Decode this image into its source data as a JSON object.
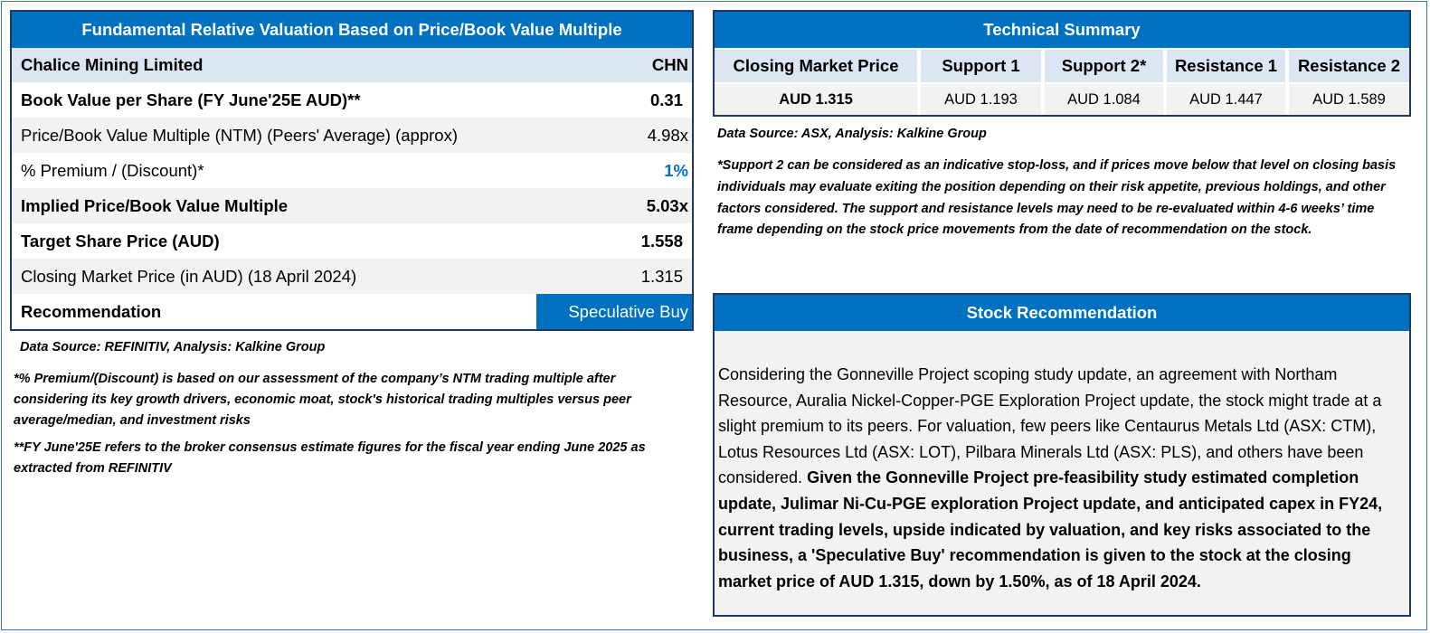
{
  "valuation": {
    "title": "Fundamental Relative Valuation Based on Price/Book Value Multiple",
    "company": {
      "name": "Chalice Mining Limited",
      "ticker": "CHN"
    },
    "rows": [
      {
        "label": "Book Value per Share (FY June'25E AUD)**",
        "value": "0.31"
      },
      {
        "label": "Price/Book Value Multiple (NTM)  (Peers' Average) (approx)",
        "value": "4.98x"
      },
      {
        "label": "% Premium / (Discount)*",
        "value": "1%"
      },
      {
        "label": "Implied Price/Book Value Multiple",
        "value": "5.03x"
      },
      {
        "label": "Target Share Price (AUD)",
        "value": "1.558"
      },
      {
        "label": "Closing Market Price (in AUD) (18 April 2024)",
        "value": "1.315"
      }
    ],
    "recommendation": {
      "label": "Recommendation",
      "value": "Speculative Buy"
    },
    "source": "Data Source: REFINITIV, Analysis: Kalkine Group",
    "note1": "*% Premium/(Discount) is based on our assessment of the company’s NTM trading multiple after considering its key growth drivers, economic moat, stock's historical trading multiples versus peer average/median, and investment risks",
    "note2": " **FY June'25E refers to the broker consensus estimate figures for the fiscal year ending June 2025 as extracted from REFINITIV"
  },
  "technical": {
    "title": "Technical Summary",
    "columns": [
      {
        "header": "Closing Market Price",
        "value": "AUD 1.315"
      },
      {
        "header": "Support 1",
        "value": "AUD 1.193"
      },
      {
        "header": "Support 2*",
        "value": "AUD 1.084"
      },
      {
        "header": "Resistance 1",
        "value": "AUD 1.447"
      },
      {
        "header": "Resistance 2",
        "value": "AUD 1.589"
      }
    ],
    "source": "Data Source: ASX, Analysis: Kalkine Group",
    "note": "*Support 2 can be considered as an indicative stop-loss, and if prices move below that level on closing basis individuals may evaluate exiting the position depending on their risk appetite, previous holdings, and other factors considered. The support and resistance levels may need to be re-evaluated within 4-6 weeks’ time frame depending on the stock price movements from the date of recommendation on the stock."
  },
  "stock_recommendation": {
    "title": "Stock Recommendation",
    "text_regular": "Considering the Gonneville Project scoping study update, an agreement with Northam Resource, Auralia Nickel-Copper-PGE Exploration Project update, the stock might trade at a slight premium to its peers. For valuation, few peers like Centaurus Metals Ltd (ASX: CTM), Lotus Resources Ltd (ASX: LOT), Pilbara Minerals Ltd (ASX: PLS), and others have been considered. ",
    "text_bold": "Given the Gonneville Project pre-feasibility study estimated completion update, Julimar Ni-Cu-PGE exploration Project update, and anticipated capex in FY24, current trading levels, upside indicated by valuation, and key risks associated to the business, a 'Speculative Buy' recommendation is given to the stock at the closing market price of AUD 1.315, down by 1.50%, as of 18 April 2024."
  },
  "colors": {
    "accent": "#0070c0",
    "border": "#1f3864",
    "header_fill": "#dce6f2",
    "row_fill": "#f2f2f2"
  }
}
